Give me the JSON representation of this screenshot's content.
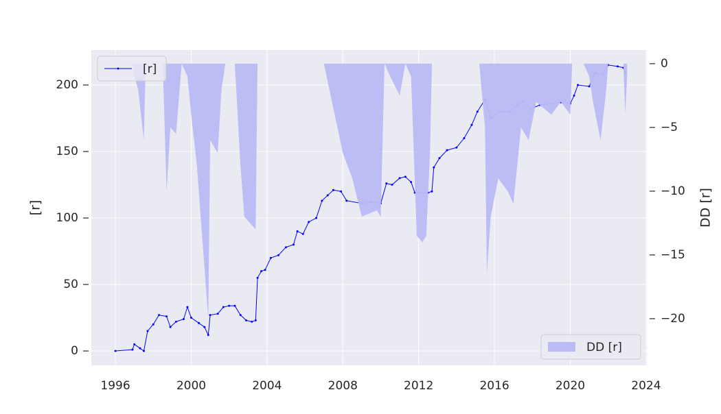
{
  "chart_data": {
    "type": "line",
    "xlim": [
      1994.73,
      2024.04
    ],
    "xticks": [
      1996,
      2000,
      2004,
      2008,
      2012,
      2016,
      2020,
      2024
    ],
    "ylim": [
      -10.8,
      226.3
    ],
    "yticks": [
      0,
      50,
      100,
      150,
      200
    ],
    "ylabel": "[r]",
    "y2lim": [
      -23.66,
      1.07
    ],
    "y2ticks": [
      {
        "value": 0,
        "label": "0"
      },
      {
        "value": -5,
        "label": "−5"
      },
      {
        "value": -10,
        "label": "−10"
      },
      {
        "value": -15,
        "label": "−15"
      },
      {
        "value": -20,
        "label": "−20"
      }
    ],
    "y2label": "DD [r]",
    "grid": true,
    "series": [
      {
        "name": "[r]",
        "type": "line",
        "color": "#0000ff",
        "legend_loc": "upper left",
        "x": [
          1996.0,
          1996.9,
          1997.0,
          1997.3,
          1997.5,
          1997.7,
          1998.0,
          1998.3,
          1998.7,
          1998.9,
          1999.2,
          1999.6,
          1999.8,
          2000.0,
          2000.4,
          2000.7,
          2000.9,
          2001.0,
          2001.4,
          2001.7,
          2002.0,
          2002.3,
          2002.6,
          2002.9,
          2003.2,
          2003.4,
          2003.5,
          2003.7,
          2003.9,
          2004.2,
          2004.6,
          2005.0,
          2005.4,
          2005.6,
          2005.9,
          2006.2,
          2006.6,
          2006.9,
          2007.2,
          2007.5,
          2007.9,
          2008.2,
          2009.0,
          2009.5,
          2010.0,
          2010.3,
          2010.6,
          2011.0,
          2011.3,
          2011.6,
          2011.8,
          2012.5,
          2012.7,
          2012.8,
          2013.1,
          2013.5,
          2014.0,
          2014.4,
          2014.8,
          2015.1,
          2015.5,
          2015.8,
          2016.3,
          2016.8,
          2017.2,
          2017.5,
          2017.9,
          2018.4,
          2019.0,
          2019.5,
          2020.0,
          2020.2,
          2020.4,
          2021.0,
          2021.3,
          2021.7,
          2022.0,
          2022.5,
          2022.8,
          2022.9
        ],
        "values": [
          0,
          1,
          5,
          2,
          0,
          15,
          20,
          27,
          26,
          18,
          22,
          24,
          33,
          25,
          21,
          18,
          12,
          27,
          28,
          33,
          34,
          34,
          27,
          23,
          22,
          23,
          55,
          60,
          61,
          70,
          72,
          78,
          80,
          90,
          88,
          97,
          100,
          113,
          117,
          121,
          120,
          113,
          111,
          112,
          111,
          126,
          125,
          130,
          131,
          127,
          119,
          119,
          120,
          138,
          145,
          151,
          153,
          160,
          170,
          180,
          189,
          175,
          180,
          180,
          185,
          188,
          182,
          185,
          186,
          187,
          186,
          192,
          200,
          199,
          209,
          208,
          215,
          214,
          213,
          209
        ]
      },
      {
        "name": "DD [r]",
        "type": "area",
        "axis": "y2",
        "color": "#bbbbf5",
        "legend_loc": "lower right",
        "x": [
          1996.9,
          1997.0,
          1997.2,
          1997.5,
          1997.6,
          1998.5,
          1998.7,
          1998.9,
          1999.2,
          1999.5,
          1999.8,
          2000.0,
          2000.3,
          2000.6,
          2000.9,
          2001.0,
          2001.4,
          2001.6,
          2001.8,
          2002.3,
          2002.6,
          2002.8,
          2003.1,
          2003.4,
          2003.5,
          2007.0,
          2008.0,
          2008.5,
          2009.0,
          2009.8,
          2010.0,
          2010.2,
          2010.5,
          2011.0,
          2011.3,
          2011.6,
          2011.9,
          2012.2,
          2012.4,
          2012.6,
          2012.7,
          2015.2,
          2015.5,
          2015.6,
          2015.8,
          2016.2,
          2016.7,
          2017.0,
          2017.4,
          2017.8,
          2018.2,
          2019.0,
          2019.5,
          2020.0,
          2020.1,
          2020.7,
          2021.0,
          2021.2,
          2021.6,
          2021.9,
          2022.0,
          2022.8,
          2022.9,
          2023.0
        ],
        "values": [
          0,
          -1,
          -2,
          -6,
          0,
          0,
          -10,
          -5,
          -5.5,
          0,
          -1,
          -4,
          -8,
          -14,
          -20,
          -6,
          -7,
          -2,
          0,
          0,
          -8,
          -12,
          -12.5,
          -13,
          0,
          0,
          -7,
          -9,
          -12,
          -11.5,
          -12,
          0,
          -1,
          -2.5,
          0,
          -1,
          -13.5,
          -14,
          -13.5,
          -7,
          0,
          0,
          -5,
          -16.5,
          -12,
          -9,
          -10,
          -11,
          -5,
          -6,
          -3,
          -4,
          -3,
          -4,
          0,
          0,
          -1,
          -3,
          -6,
          -2,
          0,
          0,
          -4,
          -1
        ]
      }
    ]
  }
}
